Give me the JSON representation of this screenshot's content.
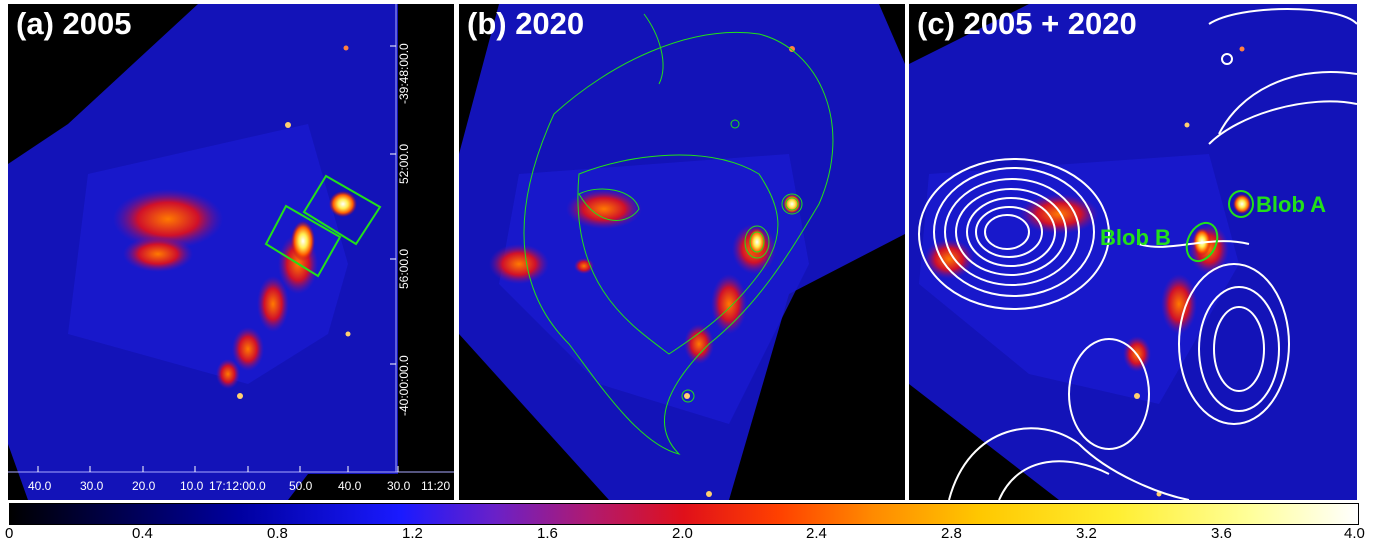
{
  "panels": [
    {
      "title": "(a) 2005"
    },
    {
      "title": "(b) 2020"
    },
    {
      "title": "(c) 2005 + 2020"
    }
  ],
  "blob_labels": {
    "a": "Blob A",
    "b": "Blob B"
  },
  "ra_ticks": [
    "40.0",
    "30.0",
    "20.0",
    "10.0",
    "17:12:00.0",
    "50.0",
    "40.0",
    "30.0",
    "11:20"
  ],
  "dec_ticks": [
    "-39:48:00.0",
    "52:00.0",
    "56:00.0",
    "-40:00:00.0"
  ],
  "colorbar": {
    "ticks": [
      "0",
      "0.4",
      "0.8",
      "1.2",
      "1.6",
      "2.0",
      "2.4",
      "2.8",
      "3.2",
      "3.6",
      "4.0"
    ],
    "range": [
      0,
      4.0
    ],
    "colormap": "heat"
  },
  "colors": {
    "region": "#22e01a",
    "contour_radio": "#ffffff",
    "contour_xray": "#22e01a"
  }
}
